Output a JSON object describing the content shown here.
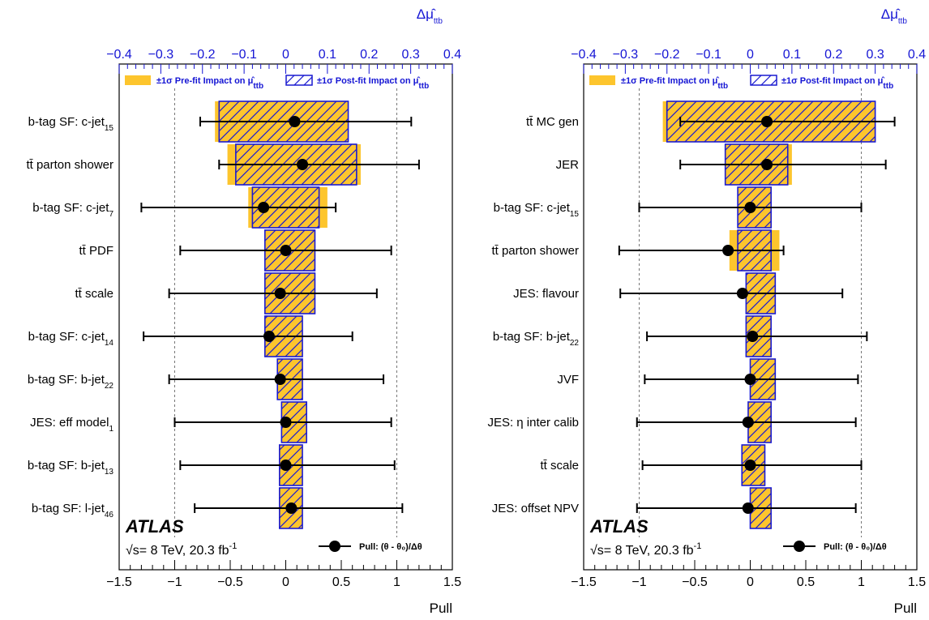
{
  "colors": {
    "prefit": "#fdc52d",
    "postfit_edge": "#1a1ad0",
    "axis_top": "#1515d4"
  },
  "chart_data": [
    {
      "type": "ranking",
      "experiment": "ATLAS",
      "energy": "√s= 8 TeV, 20.3 fb",
      "energy_sup": "-1",
      "xlabel": "Pull",
      "xlim": [
        -1.5,
        1.5
      ],
      "xticks": [
        "−1.5",
        "−1",
        "−0.5",
        "0",
        "0.5",
        "1",
        "1.5"
      ],
      "top_label": "Δμ̂",
      "top_label_sub": "ttb",
      "top_lim": [
        -0.4,
        0.4
      ],
      "top_ticks": [
        "−0.4",
        "−0.3",
        "−0.2",
        "−0.1",
        "0",
        "0.1",
        "0.2",
        "0.3",
        "0.4"
      ],
      "legend": {
        "prefit": "±1σ Pre-fit Impact on μ̂",
        "postfit": "±1σ Post-fit Impact on μ̂",
        "sub": "ttb",
        "pull": "Pull: (θ - θ₀)/Δθ"
      },
      "grid": "dashed at pull ±1",
      "parameters": [
        {
          "label": "b-tag SF: c-jet",
          "sub": "15",
          "pull": 0.08,
          "pull_err": [
            -0.85,
            1.05
          ],
          "pre": [
            -0.17,
            0.15
          ],
          "post": [
            -0.16,
            0.15
          ]
        },
        {
          "label": "tt̄ parton shower",
          "sub": "",
          "pull": 0.15,
          "pull_err": [
            -0.75,
            1.05
          ],
          "pre": [
            -0.14,
            0.18
          ],
          "post": [
            -0.12,
            0.17
          ]
        },
        {
          "label": "b-tag SF: c-jet",
          "sub": "7",
          "pull": -0.2,
          "pull_err": [
            -1.1,
            0.65
          ],
          "pre": [
            -0.09,
            0.1
          ],
          "post": [
            -0.08,
            0.08
          ]
        },
        {
          "label": "tt̄ PDF",
          "sub": "",
          "pull": 0.0,
          "pull_err": [
            -0.95,
            0.95
          ],
          "pre": [
            -0.05,
            0.07
          ],
          "post": [
            -0.05,
            0.07
          ]
        },
        {
          "label": "tt̄ scale",
          "sub": "",
          "pull": -0.05,
          "pull_err": [
            -1.0,
            0.87
          ],
          "pre": [
            -0.05,
            0.07
          ],
          "post": [
            -0.05,
            0.07
          ]
        },
        {
          "label": "b-tag SF: c-jet",
          "sub": "14",
          "pull": -0.15,
          "pull_err": [
            -1.13,
            0.75
          ],
          "pre": [
            -0.05,
            0.04
          ],
          "post": [
            -0.05,
            0.04
          ]
        },
        {
          "label": "b-tag SF: b-jet",
          "sub": "22",
          "pull": -0.05,
          "pull_err": [
            -1.0,
            0.93
          ],
          "pre": [
            -0.02,
            0.04
          ],
          "post": [
            -0.02,
            0.04
          ]
        },
        {
          "label": "JES: eff model",
          "sub": "1",
          "pull": 0.0,
          "pull_err": [
            -1.0,
            0.95
          ],
          "pre": [
            -0.01,
            0.05
          ],
          "post": [
            -0.01,
            0.05
          ]
        },
        {
          "label": "b-tag SF: b-jet",
          "sub": "13",
          "pull": 0.0,
          "pull_err": [
            -0.95,
            0.98
          ],
          "pre": [
            -0.015,
            0.04
          ],
          "post": [
            -0.015,
            0.04
          ]
        },
        {
          "label": "b-tag SF: l-jet",
          "sub": "46",
          "pull": 0.05,
          "pull_err": [
            -0.87,
            1.0
          ],
          "pre": [
            -0.015,
            0.04
          ],
          "post": [
            -0.015,
            0.04
          ]
        }
      ]
    },
    {
      "type": "ranking",
      "experiment": "ATLAS",
      "energy": "√s= 8 TeV, 20.3 fb",
      "energy_sup": "-1",
      "xlabel": "Pull",
      "xlim": [
        -1.5,
        1.5
      ],
      "xticks": [
        "−1.5",
        "−1",
        "−0.5",
        "0",
        "0.5",
        "1",
        "1.5"
      ],
      "top_label": "Δμ̂",
      "top_label_sub": "ttb",
      "top_lim": [
        -0.4,
        0.4
      ],
      "top_ticks": [
        "−0.4",
        "−0.3",
        "−0.2",
        "−0.1",
        "0",
        "0.1",
        "0.2",
        "0.3",
        "0.4"
      ],
      "legend": {
        "prefit": "±1σ Pre-fit Impact on μ̂",
        "postfit": "±1σ Post-fit Impact on μ̂",
        "sub": "ttb",
        "pull": "Pull: (θ - θ₀)/Δθ"
      },
      "grid": "dashed at pull ±1",
      "parameters": [
        {
          "label": "tt̄ MC gen",
          "sub": "",
          "pull": 0.15,
          "pull_err": [
            -0.78,
            1.15
          ],
          "pre": [
            -0.21,
            0.3
          ],
          "post": [
            -0.2,
            0.3
          ]
        },
        {
          "label": "JER",
          "sub": "",
          "pull": 0.15,
          "pull_err": [
            -0.78,
            1.07
          ],
          "pre": [
            -0.06,
            0.1
          ],
          "post": [
            -0.06,
            0.09
          ]
        },
        {
          "label": "b-tag SF: c-jet",
          "sub": "15",
          "pull": 0.0,
          "pull_err": [
            -1.0,
            1.0
          ],
          "pre": [
            -0.03,
            0.05
          ],
          "post": [
            -0.03,
            0.05
          ]
        },
        {
          "label": "tt̄ parton shower",
          "sub": "",
          "pull": -0.2,
          "pull_err": [
            -0.98,
            0.5
          ],
          "pre": [
            -0.05,
            0.07
          ],
          "post": [
            -0.03,
            0.05
          ]
        },
        {
          "label": "JES: flavour",
          "sub": "",
          "pull": -0.07,
          "pull_err": [
            -1.1,
            0.9
          ],
          "pre": [
            -0.01,
            0.06
          ],
          "post": [
            -0.01,
            0.06
          ]
        },
        {
          "label": "b-tag SF: b-jet",
          "sub": "22",
          "pull": 0.02,
          "pull_err": [
            -0.95,
            1.03
          ],
          "pre": [
            -0.01,
            0.05
          ],
          "post": [
            -0.01,
            0.05
          ]
        },
        {
          "label": "JVF",
          "sub": "",
          "pull": 0.0,
          "pull_err": [
            -0.95,
            0.97
          ],
          "pre": [
            0.0,
            0.06
          ],
          "post": [
            0.0,
            0.06
          ]
        },
        {
          "label": "JES: η inter calib",
          "sub": "",
          "pull": -0.02,
          "pull_err": [
            -1.0,
            0.97
          ],
          "pre": [
            -0.005,
            0.05
          ],
          "post": [
            -0.005,
            0.05
          ]
        },
        {
          "label": "tt̄ scale",
          "sub": "",
          "pull": 0.0,
          "pull_err": [
            -0.97,
            1.0
          ],
          "pre": [
            -0.02,
            0.035
          ],
          "post": [
            -0.02,
            0.035
          ]
        },
        {
          "label": "JES: offset NPV",
          "sub": "",
          "pull": -0.02,
          "pull_err": [
            -1.0,
            0.97
          ],
          "pre": [
            0.0,
            0.05
          ],
          "post": [
            0.0,
            0.05
          ]
        }
      ]
    }
  ]
}
